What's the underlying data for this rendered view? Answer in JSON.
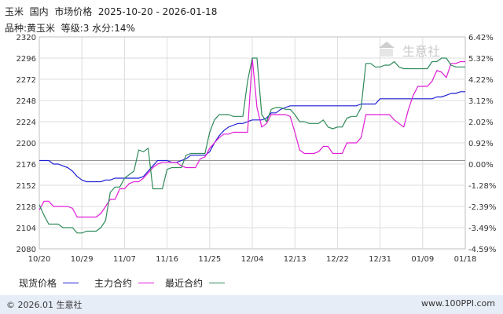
{
  "header": {
    "line1": "玉米  国内  市场价格  2025-10-20 - 2026-01-18",
    "line2": "品种:黄玉米  等级:3 水分:14%"
  },
  "watermark": "生意社",
  "footer": {
    "copyright": "© 2026.01 生意社",
    "url": "www.100PPI.com"
  },
  "colors": {
    "spot": "#1f1fd2",
    "main": "#e01cd6",
    "latest": "#2f8a5a",
    "baseline": "#999999",
    "grid": "#dcdcdc"
  },
  "chart_data": {
    "type": "line",
    "x": [
      "10/20",
      "10/21",
      "10/22",
      "10/23",
      "10/24",
      "10/25",
      "10/26",
      "10/27",
      "10/28",
      "10/29",
      "10/30",
      "10/31",
      "11/01",
      "11/02",
      "11/03",
      "11/04",
      "11/05",
      "11/06",
      "11/07",
      "11/08",
      "11/09",
      "11/10",
      "11/11",
      "11/12",
      "11/13",
      "11/14",
      "11/15",
      "11/16",
      "11/17",
      "11/18",
      "11/19",
      "11/20",
      "11/21",
      "11/22",
      "11/23",
      "11/24",
      "11/25",
      "11/26",
      "11/27",
      "11/28",
      "11/29",
      "11/30",
      "12/01",
      "12/02",
      "12/03",
      "12/04",
      "12/05",
      "12/06",
      "12/07",
      "12/08",
      "12/09",
      "12/10",
      "12/11",
      "12/12",
      "12/13",
      "12/14",
      "12/15",
      "12/16",
      "12/17",
      "12/18",
      "12/19",
      "12/20",
      "12/21",
      "12/22",
      "12/23",
      "12/24",
      "12/25",
      "12/26",
      "12/27",
      "12/28",
      "12/29",
      "12/30",
      "12/31",
      "01/01",
      "01/02",
      "01/03",
      "01/04",
      "01/05",
      "01/06",
      "01/07",
      "01/08",
      "01/09",
      "01/10",
      "01/11",
      "01/12",
      "01/13",
      "01/14",
      "01/15",
      "01/16",
      "01/17",
      "01/18"
    ],
    "x_ticks": [
      "10/20",
      "10/29",
      "11/07",
      "11/16",
      "11/25",
      "12/04",
      "12/13",
      "12/22",
      "12/31",
      "01/09",
      "01/18"
    ],
    "y_left_ticks": [
      "2320",
      "2296",
      "2272",
      "2248",
      "2224",
      "2200",
      "2176",
      "2152",
      "2128",
      "2104",
      "2080"
    ],
    "y_right_ticks": [
      "6.42%",
      "5.32%",
      "4.22%",
      "3.12%",
      "2.02%",
      "0.92%",
      "0.00%",
      "-1.28%",
      "-2.39%",
      "-3.49%",
      "-4.59%"
    ],
    "ylim": [
      2080,
      2320
    ],
    "baseline": 2180,
    "series": [
      {
        "name": "现货价格",
        "color": "#1f1fd2",
        "values": [
          2180,
          2180,
          2180,
          2176,
          2176,
          2174,
          2172,
          2168,
          2162,
          2158,
          2156,
          2156,
          2156,
          2156,
          2158,
          2158,
          2160,
          2160,
          2160,
          2160,
          2160,
          2160,
          2162,
          2168,
          2174,
          2180,
          2180,
          2180,
          2178,
          2178,
          2180,
          2182,
          2186,
          2186,
          2186,
          2186,
          2190,
          2200,
          2208,
          2214,
          2218,
          2220,
          2222,
          2222,
          2224,
          2226,
          2226,
          2226,
          2228,
          2234,
          2234,
          2238,
          2240,
          2242,
          2242,
          2242,
          2242,
          2242,
          2242,
          2242,
          2242,
          2242,
          2242,
          2242,
          2242,
          2242,
          2242,
          2242,
          2244,
          2244,
          2244,
          2244,
          2250,
          2250,
          2250,
          2250,
          2250,
          2250,
          2250,
          2250,
          2250,
          2250,
          2250,
          2250,
          2252,
          2252,
          2254,
          2256,
          2256,
          2258,
          2258
        ]
      },
      {
        "name": "主力合约",
        "color": "#e01cd6",
        "values": [
          2124,
          2134,
          2134,
          2128,
          2128,
          2128,
          2128,
          2126,
          2116,
          2116,
          2116,
          2116,
          2116,
          2120,
          2128,
          2136,
          2136,
          2148,
          2148,
          2154,
          2156,
          2156,
          2160,
          2166,
          2172,
          2176,
          2178,
          2178,
          2178,
          2178,
          2174,
          2172,
          2172,
          2172,
          2182,
          2184,
          2194,
          2200,
          2206,
          2210,
          2210,
          2212,
          2212,
          2212,
          2212,
          2296,
          2240,
          2218,
          2222,
          2232,
          2232,
          2232,
          2232,
          2230,
          2212,
          2192,
          2188,
          2188,
          2188,
          2190,
          2196,
          2196,
          2188,
          2188,
          2188,
          2200,
          2200,
          2200,
          2206,
          2232,
          2232,
          2232,
          2232,
          2232,
          2232,
          2226,
          2222,
          2218,
          2238,
          2254,
          2264,
          2264,
          2264,
          2270,
          2282,
          2280,
          2274,
          2290,
          2290,
          2292,
          2292
        ]
      },
      {
        "name": "最近合约",
        "color": "#2f8a5a",
        "values": [
          2130,
          2118,
          2108,
          2108,
          2108,
          2104,
          2104,
          2104,
          2098,
          2098,
          2100,
          2100,
          2100,
          2104,
          2112,
          2144,
          2150,
          2150,
          2160,
          2164,
          2168,
          2192,
          2190,
          2194,
          2148,
          2148,
          2148,
          2170,
          2172,
          2172,
          2172,
          2186,
          2188,
          2188,
          2188,
          2188,
          2212,
          2226,
          2232,
          2232,
          2232,
          2230,
          2230,
          2230,
          2270,
          2296,
          2296,
          2232,
          2224,
          2238,
          2240,
          2240,
          2238,
          2238,
          2232,
          2224,
          2224,
          2222,
          2222,
          2222,
          2226,
          2218,
          2216,
          2218,
          2218,
          2228,
          2230,
          2230,
          2240,
          2290,
          2290,
          2286,
          2286,
          2288,
          2288,
          2292,
          2286,
          2284,
          2284,
          2284,
          2284,
          2284,
          2284,
          2292,
          2292,
          2296,
          2296,
          2288,
          2286,
          2286,
          2286
        ]
      }
    ]
  }
}
